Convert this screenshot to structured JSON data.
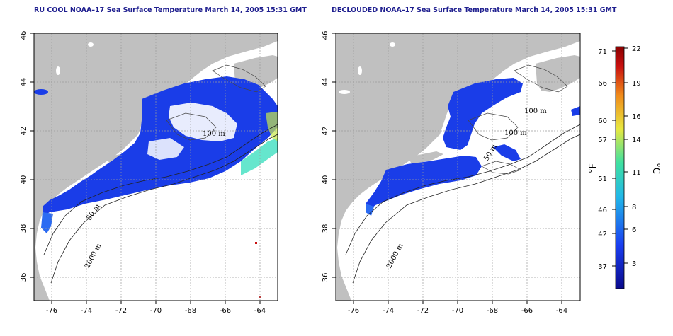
{
  "titles": {
    "left": "RU COOL NOAA–17 Sea Surface Temperature March 14, 2005 15:31 GMT",
    "right": "DECLOUDED NOAA–17 Sea Surface Temperature March 14, 2005 15:31 GMT"
  },
  "axes": {
    "lon_ticks": [
      "-76",
      "-74",
      "-72",
      "-70",
      "-68",
      "-66",
      "-64"
    ],
    "lat_ticks": [
      "36",
      "38",
      "40",
      "42",
      "44",
      "46"
    ]
  },
  "contour_labels": {
    "left": [
      "100 m",
      "50 m",
      "2000 m"
    ],
    "right": [
      "100 m",
      "100 m",
      "50 m",
      "2000 m"
    ]
  },
  "colorbar": {
    "fahrenheit_ticks": [
      "71",
      "66",
      "60",
      "57",
      "51",
      "46",
      "42",
      "37"
    ],
    "celsius_ticks": [
      "22",
      "19",
      "16",
      "14",
      "11",
      "8",
      "6",
      "3"
    ],
    "unit_f": "°F",
    "unit_c": "°C",
    "colors": [
      "#0a0a8c",
      "#1a3ef0",
      "#22b8e8",
      "#3fe0a0",
      "#e8e840",
      "#f08a1a",
      "#c81010",
      "#8a0000"
    ]
  },
  "colors": {
    "land": "#c0c0c0",
    "sea": "#ffffff",
    "sst_cold": "#1a3de8",
    "title": "#1f1f8f"
  }
}
